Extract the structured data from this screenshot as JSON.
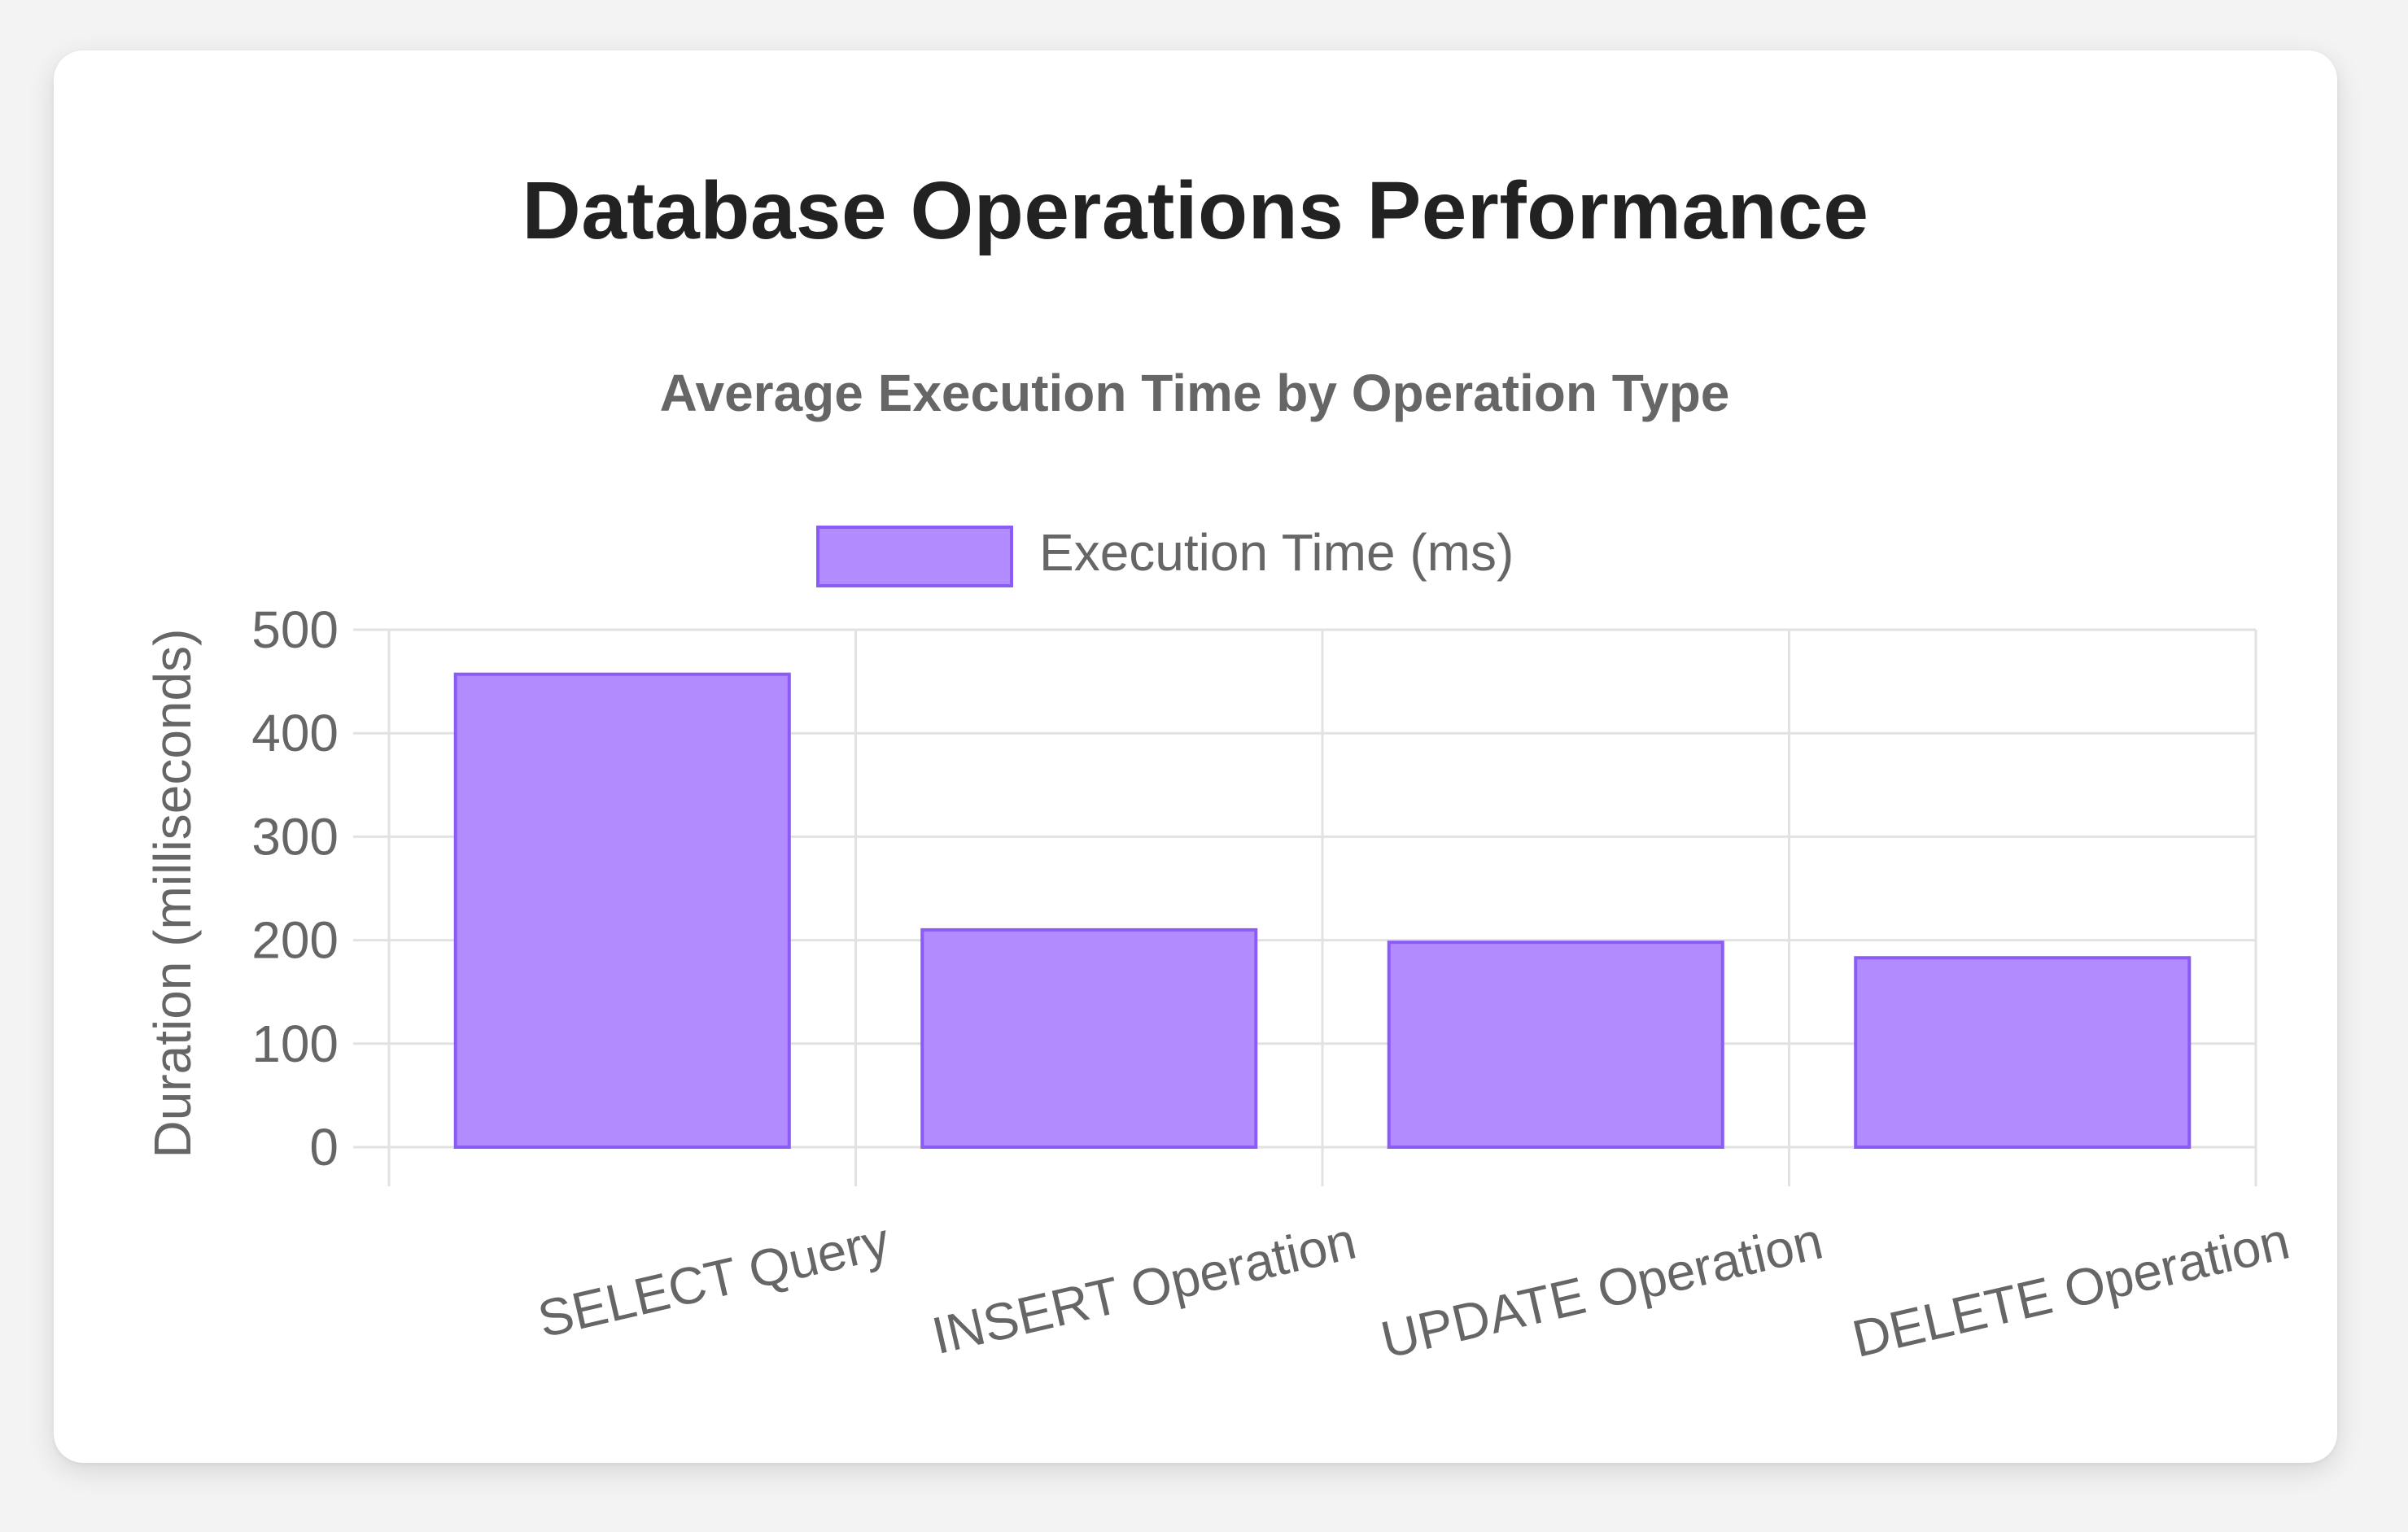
{
  "page": {
    "title": "Database Operations Performance"
  },
  "colors": {
    "bar_fill": "#b28cff",
    "bar_stroke": "#8a5cf5",
    "grid": "#e2e2e2",
    "text": "#666666",
    "title": "#222222"
  },
  "chart_data": {
    "type": "bar",
    "title": "Average Execution Time by Operation Type",
    "xlabel": "",
    "ylabel": "Duration (milliseconds)",
    "categories": [
      "SELECT Query",
      "INSERT Operation",
      "UPDATE Operation",
      "DELETE Operation"
    ],
    "series": [
      {
        "name": "Execution Time (ms)",
        "values": [
          457,
          210,
          198,
          183
        ]
      }
    ],
    "ylim": [
      0,
      500
    ],
    "yticks": [
      "0",
      "100",
      "200",
      "300",
      "400",
      "500"
    ],
    "grid": true,
    "legend": "top-center"
  }
}
